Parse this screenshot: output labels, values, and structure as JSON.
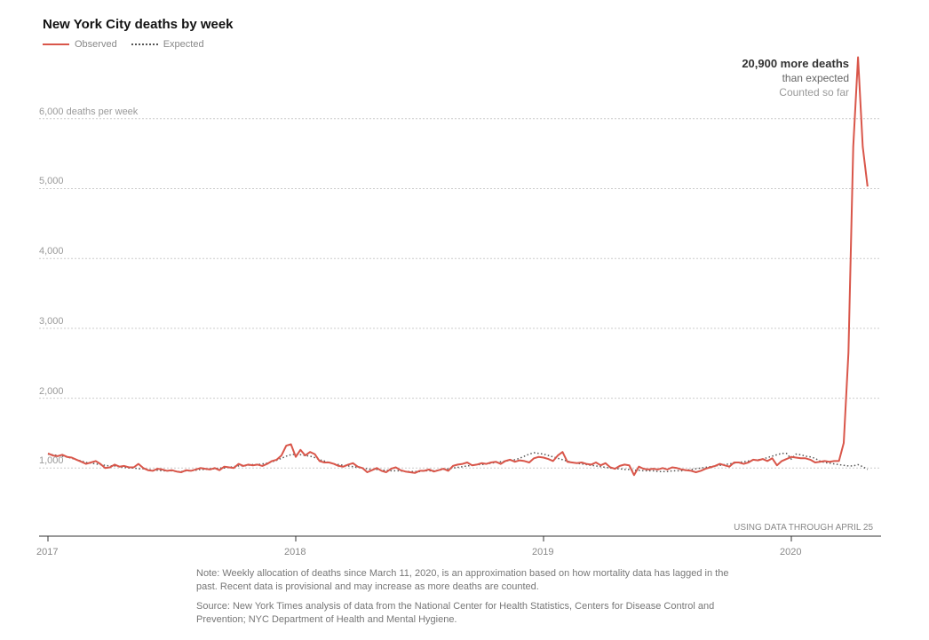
{
  "chart_data": {
    "type": "line",
    "title": "New York City deaths by week",
    "legend": [
      "Observed",
      "Expected"
    ],
    "ylabel": "deaths per week",
    "ylim": [
      0,
      6000
    ],
    "yticks": [
      "6,000 deaths per week",
      "5,000",
      "4,000",
      "3,000",
      "2,000",
      "1,000"
    ],
    "ytick_values": [
      6000,
      5000,
      4000,
      3000,
      2000,
      1000
    ],
    "xticks": [
      "2017",
      "2018",
      "2019",
      "2020"
    ],
    "x_unit": "weeks since Jan 2017",
    "annotation": {
      "headline": "20,900 more deaths",
      "line2": "than expected",
      "line3": "Counted so far"
    },
    "data_through": "USING DATA THROUGH APRIL 25",
    "colors": {
      "observed": "#d9564a",
      "expected": "#555555"
    },
    "series": [
      {
        "name": "Observed",
        "values": [
          1210,
          1180,
          1170,
          1190,
          1160,
          1150,
          1120,
          1090,
          1060,
          1080,
          1100,
          1060,
          1000,
          1010,
          1050,
          1020,
          1030,
          1010,
          1010,
          1060,
          1000,
          970,
          960,
          990,
          980,
          960,
          970,
          950,
          940,
          970,
          960,
          980,
          1000,
          990,
          980,
          1000,
          970,
          1020,
          1010,
          1000,
          1060,
          1030,
          1050,
          1040,
          1050,
          1030,
          1060,
          1100,
          1120,
          1180,
          1320,
          1340,
          1160,
          1260,
          1180,
          1230,
          1200,
          1100,
          1080,
          1080,
          1060,
          1030,
          1020,
          1050,
          1070,
          1020,
          1000,
          940,
          970,
          1000,
          960,
          940,
          990,
          1010,
          970,
          950,
          940,
          930,
          960,
          960,
          980,
          950,
          970,
          990,
          960,
          1030,
          1050,
          1060,
          1080,
          1040,
          1050,
          1070,
          1060,
          1080,
          1090,
          1060,
          1100,
          1120,
          1090,
          1110,
          1100,
          1080,
          1140,
          1160,
          1150,
          1130,
          1100,
          1180,
          1230,
          1090,
          1080,
          1070,
          1080,
          1060,
          1050,
          1080,
          1040,
          1070,
          1010,
          990,
          1030,
          1050,
          1040,
          900,
          1020,
          990,
          980,
          990,
          980,
          1000,
          980,
          1010,
          1000,
          980,
          970,
          960,
          940,
          960,
          990,
          1010,
          1030,
          1060,
          1040,
          1020,
          1080,
          1080,
          1060,
          1080,
          1120,
          1110,
          1130,
          1100,
          1140,
          1040,
          1100,
          1130,
          1160,
          1150,
          1140,
          1140,
          1120,
          1080,
          1090,
          1100,
          1090,
          1100,
          1100,
          1360,
          2650,
          5600,
          6880,
          5600,
          5030
        ]
      },
      {
        "name": "Expected",
        "values": [
          1200,
          1190,
          1180,
          1170,
          1160,
          1140,
          1120,
          1100,
          1080,
          1070,
          1060,
          1050,
          1040,
          1030,
          1030,
          1020,
          1010,
          1000,
          1000,
          990,
          990,
          980,
          970,
          970,
          960,
          960,
          960,
          950,
          950,
          960,
          960,
          970,
          980,
          980,
          990,
          990,
          1000,
          1000,
          1010,
          1020,
          1030,
          1030,
          1040,
          1050,
          1050,
          1060,
          1070,
          1090,
          1110,
          1140,
          1170,
          1190,
          1200,
          1190,
          1180,
          1170,
          1150,
          1120,
          1100,
          1080,
          1060,
          1050,
          1040,
          1030,
          1020,
          1010,
          1000,
          990,
          980,
          980,
          970,
          970,
          960,
          960,
          960,
          950,
          950,
          950,
          950,
          960,
          960,
          960,
          970,
          980,
          990,
          1000,
          1010,
          1020,
          1030,
          1040,
          1050,
          1050,
          1060,
          1070,
          1080,
          1090,
          1100,
          1110,
          1120,
          1140,
          1170,
          1200,
          1220,
          1210,
          1200,
          1180,
          1160,
          1140,
          1120,
          1100,
          1080,
          1070,
          1060,
          1050,
          1040,
          1030,
          1020,
          1010,
          1000,
          990,
          990,
          980,
          980,
          970,
          970,
          960,
          960,
          960,
          950,
          950,
          950,
          960,
          960,
          960,
          970,
          980,
          990,
          1000,
          1010,
          1020,
          1030,
          1040,
          1050,
          1060,
          1070,
          1080,
          1090,
          1100,
          1110,
          1120,
          1130,
          1150,
          1170,
          1190,
          1210,
          1210,
          1130,
          1200,
          1190,
          1170,
          1160,
          1140,
          1100,
          1080,
          1070,
          1060,
          1050,
          1040,
          1030,
          1030,
          1050,
          1020,
          980
        ]
      }
    ]
  },
  "notes": {
    "note": "Note: Weekly allocation of deaths since March 11, 2020, is an approximation based on how mortality data has lagged in the past. Recent data is provisional and may increase as more deaths are counted.",
    "source": "Source: New York Times analysis of data from the National Center for Health Statistics, Centers for Disease Control and Prevention; NYC Department of Health and Mental Hygiene."
  }
}
